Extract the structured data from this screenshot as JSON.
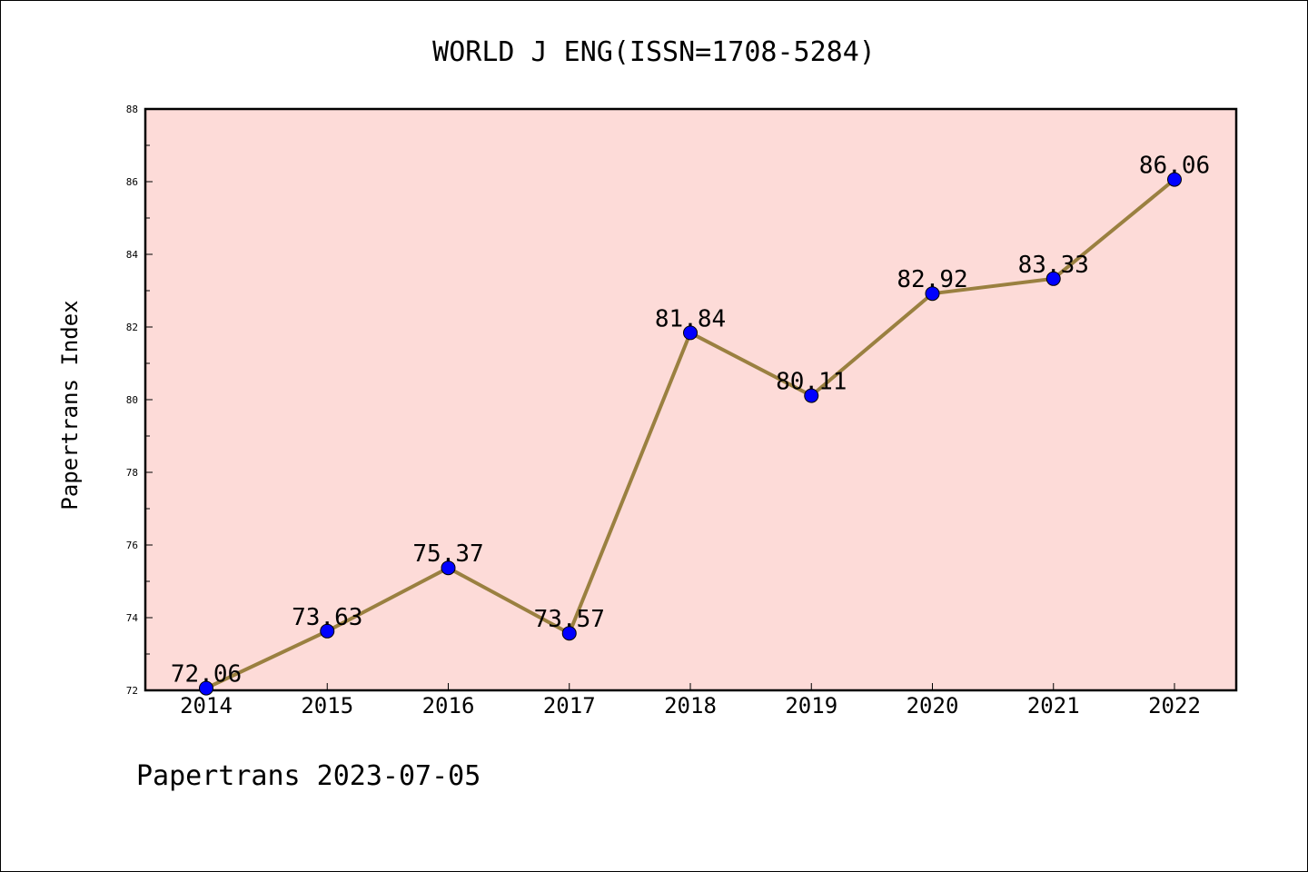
{
  "chart_data": {
    "type": "line",
    "title": "WORLD J ENG(ISSN=1708-5284)",
    "ylabel": "Papertrans Index",
    "xlabel": "",
    "footer": "Papertrans 2023-07-05",
    "categories": [
      "2014",
      "2015",
      "2016",
      "2017",
      "2018",
      "2019",
      "2020",
      "2021",
      "2022"
    ],
    "series": [
      {
        "values": [
          72.06,
          73.63,
          75.37,
          73.57,
          81.84,
          80.11,
          82.92,
          83.33,
          86.06
        ],
        "labels": [
          "72.06",
          "73.63",
          "75.37",
          "73.57",
          "81.84",
          "80.11",
          "82.92",
          "83.33",
          "86.06"
        ]
      }
    ],
    "ylim": [
      72,
      88
    ],
    "yticks": [
      "72",
      "74",
      "76",
      "78",
      "80",
      "82",
      "84",
      "86",
      "88"
    ],
    "grid": false,
    "colors": {
      "plot_background": "#fddbd8",
      "line": "#9a8040",
      "marker": "#0000ff"
    }
  }
}
